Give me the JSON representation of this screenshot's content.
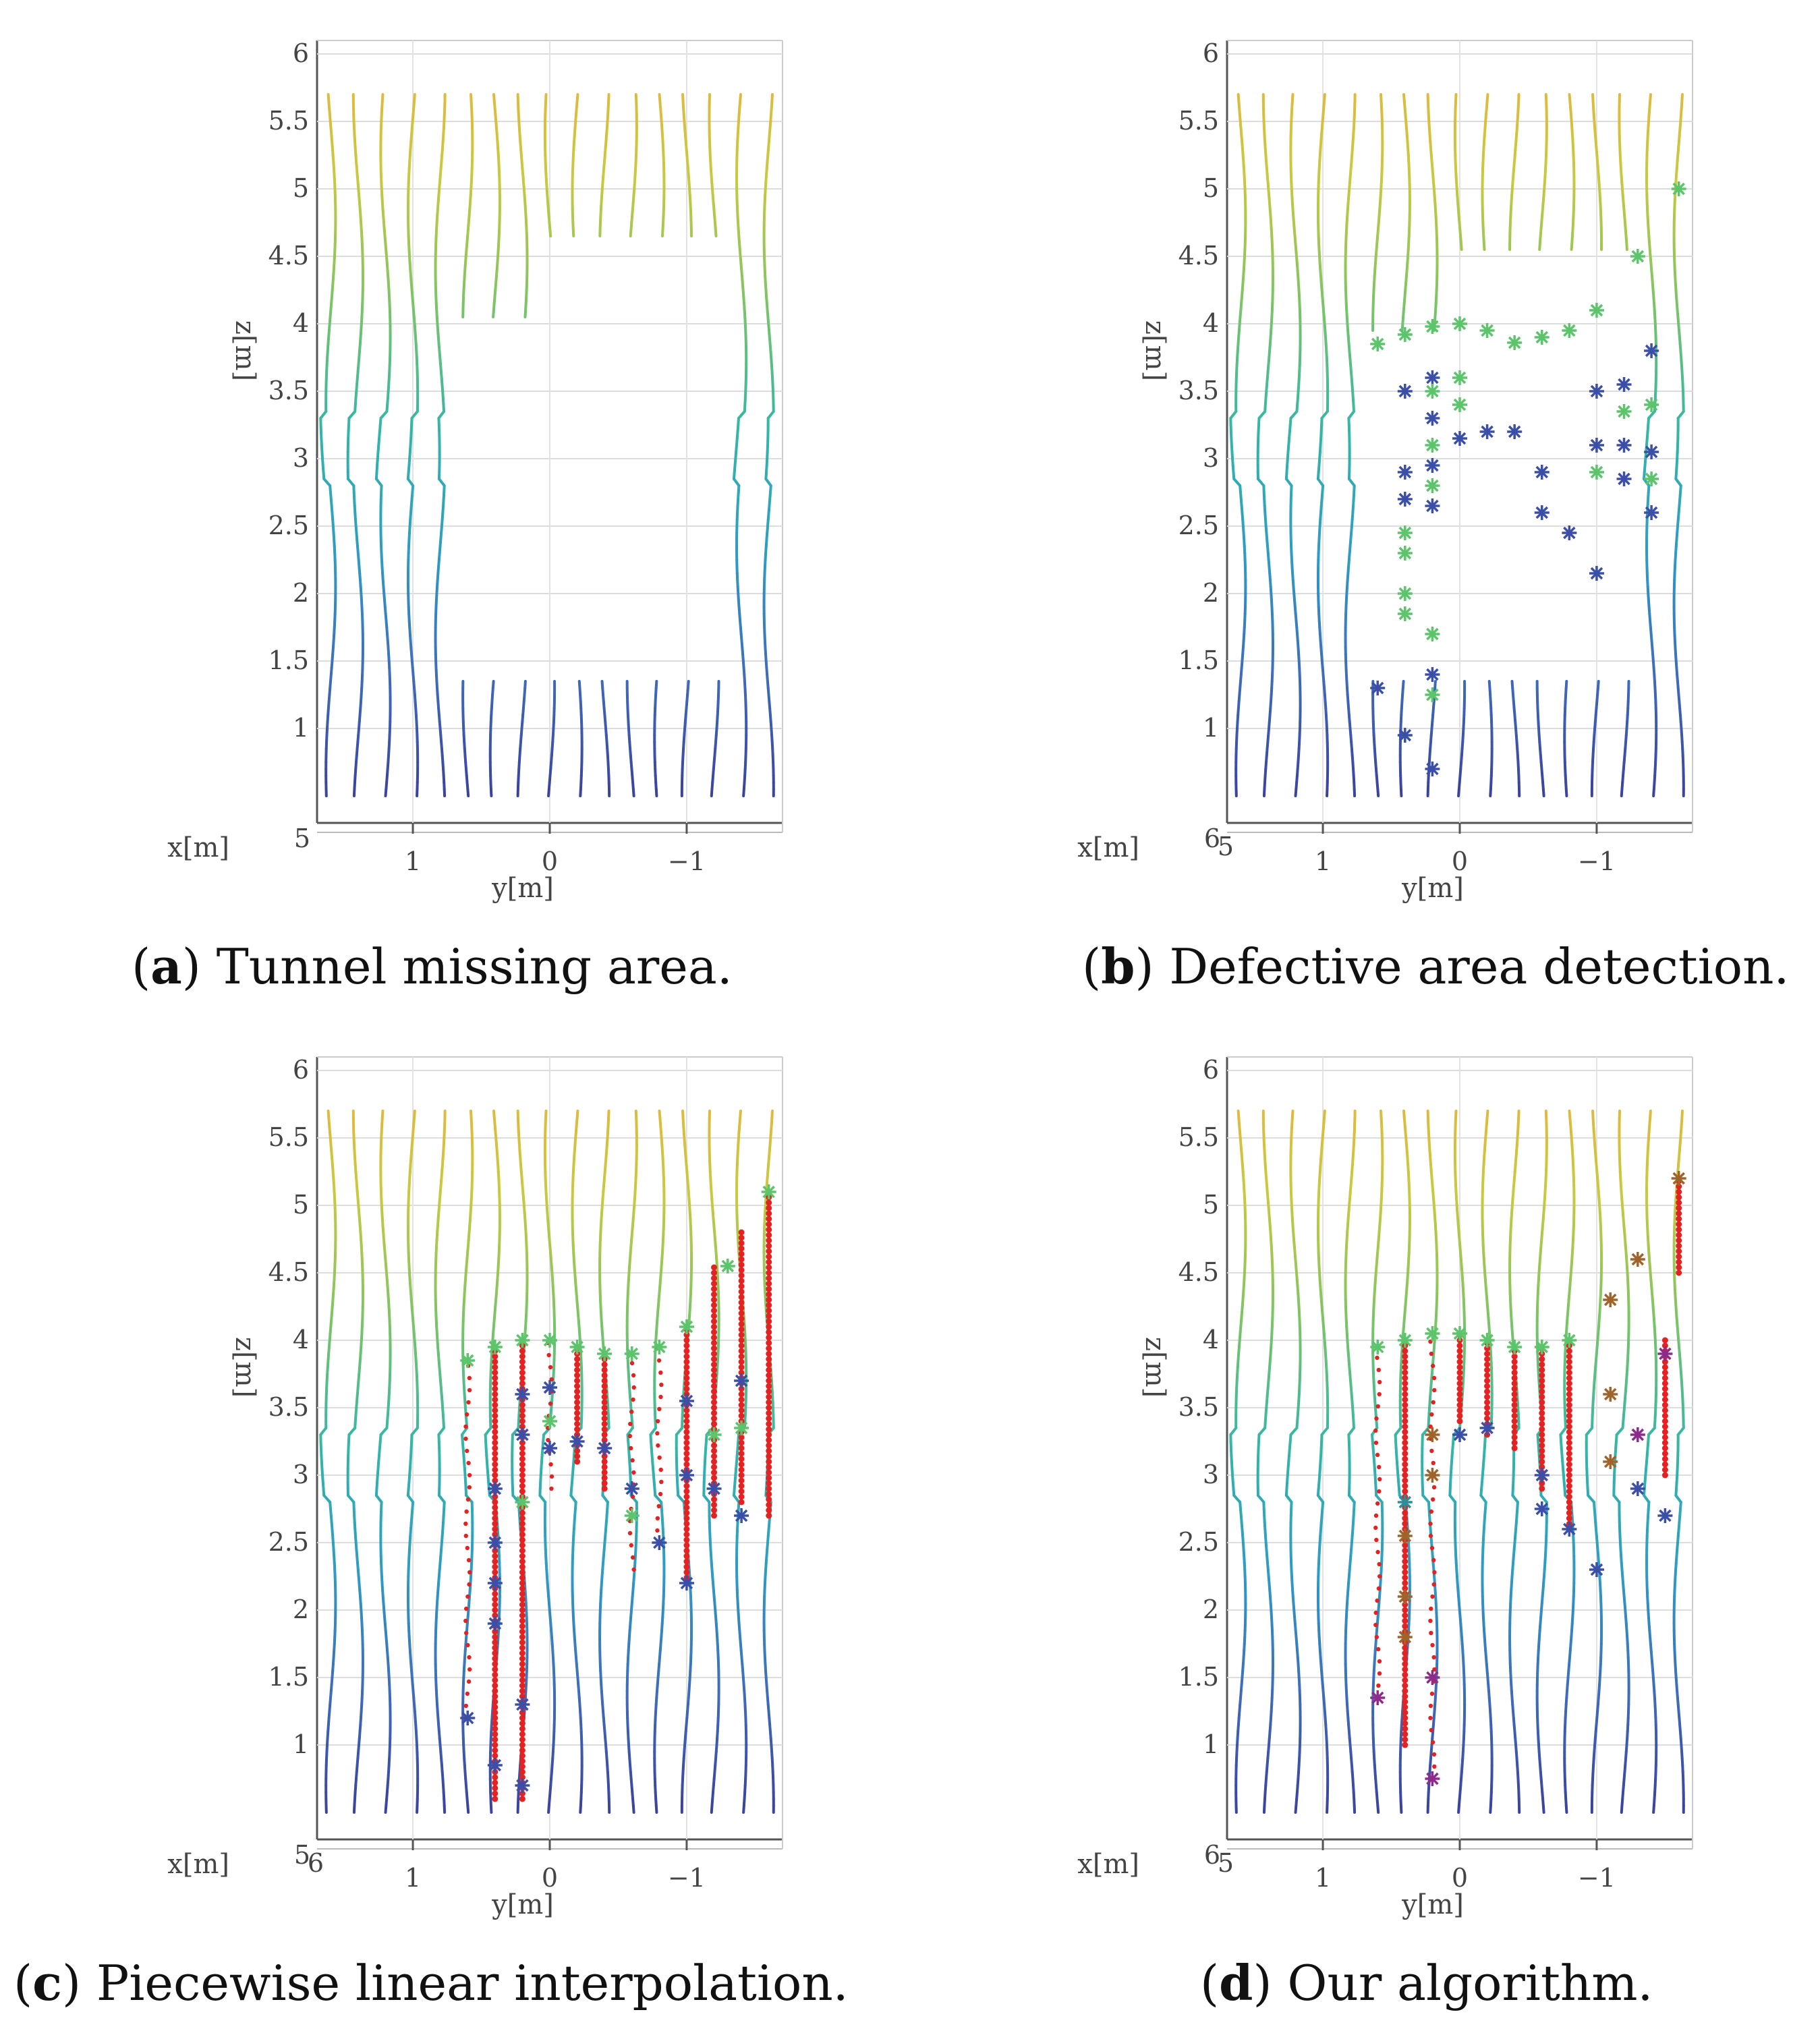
{
  "figure": {
    "panels": [
      {
        "letter": "a",
        "caption": " Tunnel missing area."
      },
      {
        "letter": "b",
        "caption": " Defective area detection."
      },
      {
        "letter": "c",
        "caption": " Piecewise linear interpolation."
      },
      {
        "letter": "d",
        "caption": " Our algorithm."
      }
    ]
  },
  "colors": {
    "profile_gradient": [
      "#3a3f9a",
      "#3f6ab8",
      "#2f9bc4",
      "#33b6a8",
      "#7cc466",
      "#c8c93e",
      "#e9b43c"
    ],
    "blue_star": "#3b4fa8",
    "green_star": "#5cc46a",
    "interp_red": "#e32222",
    "teal_star": "#2a8f9a",
    "brown_star": "#a0642a",
    "purple_star": "#8e2a8a"
  },
  "chart_data": [
    {
      "id": "a",
      "type": "scatter",
      "title": "Tunnel missing area.",
      "xlabel": "y[m]",
      "ylabel": "z[m]",
      "xaxis_extra_label": "x[m]",
      "x_ticks": [
        "1",
        "0",
        "−1"
      ],
      "x_tick_values": [
        1,
        0,
        -1
      ],
      "x_corner_ticks": [
        "5"
      ],
      "z_ticks": [
        "1",
        "1.5",
        "2",
        "2.5",
        "3",
        "3.5",
        "4",
        "4.5",
        "5",
        "5.5",
        "6"
      ],
      "z_tick_values": [
        1,
        1.5,
        2,
        2.5,
        3,
        3.5,
        4,
        4.5,
        5,
        5.5,
        6
      ],
      "ylim": [
        0.4,
        6
      ],
      "xlim": [
        1.7,
        -1.7
      ],
      "profiles_y": [
        1.6,
        1.4,
        1.2,
        1.0,
        0.8,
        0.6,
        0.4,
        0.2,
        0.0,
        -0.2,
        -0.4,
        -0.6,
        -0.8,
        -1.0,
        -1.2,
        -1.4,
        -1.6
      ],
      "profile_top": 5.7,
      "profile_bottom": 0.5,
      "missing_regions": [
        {
          "y_from": 0.6,
          "y_to": -1.3,
          "z_from": 1.4,
          "z_to": 4.0
        },
        {
          "y_from": 0.0,
          "y_to": -1.3,
          "z_from": 4.0,
          "z_to": 4.6
        }
      ],
      "stars": [],
      "interpolated": []
    },
    {
      "id": "b",
      "type": "scatter",
      "title": "Defective area detection.",
      "xlabel": "y[m]",
      "ylabel": "z[m]",
      "xaxis_extra_label": "x[m]",
      "x_ticks": [
        "1",
        "0",
        "−1"
      ],
      "x_tick_values": [
        1,
        0,
        -1
      ],
      "x_corner_ticks": [
        "6",
        "5"
      ],
      "z_ticks": [
        "1",
        "1.5",
        "2",
        "2.5",
        "3",
        "3.5",
        "4",
        "4.5",
        "5",
        "5.5",
        "6"
      ],
      "z_tick_values": [
        1,
        1.5,
        2,
        2.5,
        3,
        3.5,
        4,
        4.5,
        5,
        5.5,
        6
      ],
      "ylim": [
        0.4,
        6
      ],
      "xlim": [
        1.7,
        -1.7
      ],
      "profiles_y": [
        1.6,
        1.4,
        1.2,
        1.0,
        0.8,
        0.6,
        0.4,
        0.2,
        0.0,
        -0.2,
        -0.4,
        -0.6,
        -0.8,
        -1.0,
        -1.2,
        -1.4,
        -1.6
      ],
      "profile_top": 5.7,
      "profile_bottom": 0.5,
      "missing_regions": [
        {
          "y_from": 0.6,
          "y_to": -1.3,
          "z_from": 1.4,
          "z_to": 3.9
        },
        {
          "y_from": 0.0,
          "y_to": -1.3,
          "z_from": 3.9,
          "z_to": 4.5
        }
      ],
      "stars": [
        {
          "y": 0.6,
          "z": 3.85,
          "c": "g"
        },
        {
          "y": 0.4,
          "z": 3.92,
          "c": "g"
        },
        {
          "y": 0.2,
          "z": 3.98,
          "c": "g"
        },
        {
          "y": 0.0,
          "z": 4.0,
          "c": "g"
        },
        {
          "y": -0.2,
          "z": 3.95,
          "c": "g"
        },
        {
          "y": -0.4,
          "z": 3.86,
          "c": "g"
        },
        {
          "y": -0.6,
          "z": 3.9,
          "c": "g"
        },
        {
          "y": -0.8,
          "z": 3.95,
          "c": "g"
        },
        {
          "y": -1.0,
          "z": 4.1,
          "c": "g"
        },
        {
          "y": -1.3,
          "z": 4.5,
          "c": "g"
        },
        {
          "y": -1.6,
          "z": 5.0,
          "c": "g"
        },
        {
          "y": 0.4,
          "z": 3.5,
          "c": "b"
        },
        {
          "y": 0.4,
          "z": 2.9,
          "c": "b"
        },
        {
          "y": 0.4,
          "z": 2.7,
          "c": "b"
        },
        {
          "y": 0.4,
          "z": 2.45,
          "c": "g"
        },
        {
          "y": 0.4,
          "z": 2.3,
          "c": "g"
        },
        {
          "y": 0.4,
          "z": 2.0,
          "c": "g"
        },
        {
          "y": 0.4,
          "z": 1.85,
          "c": "g"
        },
        {
          "y": 0.4,
          "z": 0.95,
          "c": "b"
        },
        {
          "y": 0.2,
          "z": 3.6,
          "c": "b"
        },
        {
          "y": 0.2,
          "z": 3.5,
          "c": "g"
        },
        {
          "y": 0.2,
          "z": 3.3,
          "c": "b"
        },
        {
          "y": 0.2,
          "z": 3.1,
          "c": "g"
        },
        {
          "y": 0.2,
          "z": 2.95,
          "c": "b"
        },
        {
          "y": 0.2,
          "z": 2.8,
          "c": "g"
        },
        {
          "y": 0.2,
          "z": 2.65,
          "c": "b"
        },
        {
          "y": 0.2,
          "z": 1.7,
          "c": "g"
        },
        {
          "y": 0.2,
          "z": 1.4,
          "c": "b"
        },
        {
          "y": 0.2,
          "z": 1.25,
          "c": "g"
        },
        {
          "y": 0.2,
          "z": 0.7,
          "c": "b"
        },
        {
          "y": 0.0,
          "z": 3.6,
          "c": "g"
        },
        {
          "y": 0.0,
          "z": 3.4,
          "c": "g"
        },
        {
          "y": 0.0,
          "z": 3.15,
          "c": "b"
        },
        {
          "y": -0.2,
          "z": 3.2,
          "c": "b"
        },
        {
          "y": -0.4,
          "z": 3.2,
          "c": "b"
        },
        {
          "y": -0.6,
          "z": 2.9,
          "c": "b"
        },
        {
          "y": -0.6,
          "z": 2.6,
          "c": "b"
        },
        {
          "y": -0.8,
          "z": 2.45,
          "c": "b"
        },
        {
          "y": 0.6,
          "z": 1.3,
          "c": "b"
        },
        {
          "y": -1.0,
          "z": 3.5,
          "c": "b"
        },
        {
          "y": -1.0,
          "z": 3.1,
          "c": "b"
        },
        {
          "y": -1.0,
          "z": 2.9,
          "c": "g"
        },
        {
          "y": -1.0,
          "z": 2.15,
          "c": "b"
        },
        {
          "y": -1.2,
          "z": 3.55,
          "c": "b"
        },
        {
          "y": -1.2,
          "z": 3.35,
          "c": "g"
        },
        {
          "y": -1.2,
          "z": 3.1,
          "c": "b"
        },
        {
          "y": -1.2,
          "z": 2.85,
          "c": "b"
        },
        {
          "y": -1.4,
          "z": 3.8,
          "c": "b"
        },
        {
          "y": -1.4,
          "z": 3.4,
          "c": "g"
        },
        {
          "y": -1.4,
          "z": 3.05,
          "c": "b"
        },
        {
          "y": -1.4,
          "z": 2.85,
          "c": "g"
        },
        {
          "y": -1.4,
          "z": 2.6,
          "c": "b"
        }
      ],
      "interpolated": []
    },
    {
      "id": "c",
      "type": "scatter",
      "title": "Piecewise linear interpolation.",
      "xlabel": "y[m]",
      "ylabel": "z[m]",
      "xaxis_extra_label": "x[m]",
      "x_ticks": [
        "1",
        "0",
        "−1"
      ],
      "x_tick_values": [
        1,
        0,
        -1
      ],
      "x_corner_ticks": [
        "5",
        "6"
      ],
      "z_ticks": [
        "1",
        "1.5",
        "2",
        "2.5",
        "3",
        "3.5",
        "4",
        "4.5",
        "5",
        "5.5",
        "6"
      ],
      "z_tick_values": [
        1,
        1.5,
        2,
        2.5,
        3,
        3.5,
        4,
        4.5,
        5,
        5.5,
        6
      ],
      "ylim": [
        0.4,
        6
      ],
      "xlim": [
        1.7,
        -1.7
      ],
      "profiles_y": [
        1.6,
        1.4,
        1.2,
        1.0,
        0.8,
        0.6,
        0.4,
        0.2,
        0.0,
        -0.2,
        -0.4,
        -0.6,
        -0.8,
        -1.0,
        -1.2,
        -1.4,
        -1.6
      ],
      "profile_top": 5.7,
      "profile_bottom": 0.5,
      "missing_regions": [],
      "stars": [
        {
          "y": 0.6,
          "z": 3.85,
          "c": "g"
        },
        {
          "y": 0.4,
          "z": 3.95,
          "c": "g"
        },
        {
          "y": 0.2,
          "z": 4.0,
          "c": "g"
        },
        {
          "y": 0.0,
          "z": 4.0,
          "c": "g"
        },
        {
          "y": -0.2,
          "z": 3.95,
          "c": "g"
        },
        {
          "y": -0.4,
          "z": 3.9,
          "c": "g"
        },
        {
          "y": -0.6,
          "z": 3.9,
          "c": "g"
        },
        {
          "y": -0.8,
          "z": 3.95,
          "c": "g"
        },
        {
          "y": -1.0,
          "z": 4.1,
          "c": "g"
        },
        {
          "y": -1.3,
          "z": 4.55,
          "c": "g"
        },
        {
          "y": -1.6,
          "z": 5.1,
          "c": "g"
        },
        {
          "y": 0.4,
          "z": 2.9,
          "c": "b"
        },
        {
          "y": 0.4,
          "z": 2.5,
          "c": "b"
        },
        {
          "y": 0.4,
          "z": 2.2,
          "c": "b"
        },
        {
          "y": 0.4,
          "z": 1.9,
          "c": "b"
        },
        {
          "y": 0.4,
          "z": 0.85,
          "c": "b"
        },
        {
          "y": 0.2,
          "z": 3.6,
          "c": "b"
        },
        {
          "y": 0.2,
          "z": 3.3,
          "c": "b"
        },
        {
          "y": 0.2,
          "z": 2.8,
          "c": "g"
        },
        {
          "y": 0.2,
          "z": 1.3,
          "c": "b"
        },
        {
          "y": 0.2,
          "z": 0.7,
          "c": "b"
        },
        {
          "y": 0.0,
          "z": 3.65,
          "c": "b"
        },
        {
          "y": 0.0,
          "z": 3.4,
          "c": "g"
        },
        {
          "y": 0.0,
          "z": 3.2,
          "c": "b"
        },
        {
          "y": -0.2,
          "z": 3.25,
          "c": "b"
        },
        {
          "y": -0.4,
          "z": 3.2,
          "c": "b"
        },
        {
          "y": -0.6,
          "z": 2.9,
          "c": "b"
        },
        {
          "y": -0.6,
          "z": 2.7,
          "c": "g"
        },
        {
          "y": -0.8,
          "z": 2.5,
          "c": "b"
        },
        {
          "y": 0.6,
          "z": 1.2,
          "c": "b"
        },
        {
          "y": -1.0,
          "z": 3.55,
          "c": "b"
        },
        {
          "y": -1.0,
          "z": 3.0,
          "c": "b"
        },
        {
          "y": -1.0,
          "z": 2.2,
          "c": "b"
        },
        {
          "y": -1.2,
          "z": 3.3,
          "c": "g"
        },
        {
          "y": -1.2,
          "z": 2.9,
          "c": "b"
        },
        {
          "y": -1.4,
          "z": 3.7,
          "c": "b"
        },
        {
          "y": -1.4,
          "z": 3.35,
          "c": "g"
        },
        {
          "y": -1.4,
          "z": 2.7,
          "c": "b"
        }
      ],
      "interpolated": [
        {
          "y": 0.6,
          "z_from": 1.2,
          "z_to": 3.85,
          "dense": false
        },
        {
          "y": 0.4,
          "z_from": 0.6,
          "z_to": 3.95,
          "dense": true
        },
        {
          "y": 0.2,
          "z_from": 0.6,
          "z_to": 4.0,
          "dense": true
        },
        {
          "y": 0.0,
          "z_from": 2.9,
          "z_to": 4.0,
          "dense": false
        },
        {
          "y": -0.2,
          "z_from": 3.1,
          "z_to": 3.95,
          "dense": true
        },
        {
          "y": -0.4,
          "z_from": 2.9,
          "z_to": 3.9,
          "dense": true
        },
        {
          "y": -0.6,
          "z_from": 2.3,
          "z_to": 3.9,
          "dense": false
        },
        {
          "y": -0.8,
          "z_from": 2.5,
          "z_to": 4.0,
          "dense": false
        },
        {
          "y": -1.0,
          "z_from": 2.2,
          "z_to": 4.1,
          "dense": true
        },
        {
          "y": -1.2,
          "z_from": 2.7,
          "z_to": 4.55,
          "dense": true
        },
        {
          "y": -1.4,
          "z_from": 2.8,
          "z_to": 4.8,
          "dense": true
        },
        {
          "y": -1.6,
          "z_from": 2.7,
          "z_to": 5.1,
          "dense": true
        }
      ]
    },
    {
      "id": "d",
      "type": "scatter",
      "title": "Our algorithm.",
      "xlabel": "y[m]",
      "ylabel": "z[m]",
      "xaxis_extra_label": "x[m]",
      "x_ticks": [
        "1",
        "0",
        "−1"
      ],
      "x_tick_values": [
        1,
        0,
        -1
      ],
      "x_corner_ticks": [
        "6",
        "5"
      ],
      "z_ticks": [
        "1",
        "1.5",
        "2",
        "2.5",
        "3",
        "3.5",
        "4",
        "4.5",
        "5",
        "5.5",
        "6"
      ],
      "z_tick_values": [
        1,
        1.5,
        2,
        2.5,
        3,
        3.5,
        4,
        4.5,
        5,
        5.5,
        6
      ],
      "ylim": [
        0.4,
        6
      ],
      "xlim": [
        1.7,
        -1.7
      ],
      "profiles_y": [
        1.6,
        1.4,
        1.2,
        1.0,
        0.8,
        0.6,
        0.4,
        0.2,
        0.0,
        -0.2,
        -0.4,
        -0.6,
        -0.8,
        -1.0,
        -1.2,
        -1.4,
        -1.6
      ],
      "profile_top": 5.7,
      "profile_bottom": 0.5,
      "missing_regions": [],
      "stars": [
        {
          "y": 0.6,
          "z": 3.95,
          "c": "g"
        },
        {
          "y": 0.4,
          "z": 4.0,
          "c": "g"
        },
        {
          "y": 0.2,
          "z": 4.05,
          "c": "g"
        },
        {
          "y": 0.0,
          "z": 4.05,
          "c": "g"
        },
        {
          "y": -0.2,
          "z": 4.0,
          "c": "g"
        },
        {
          "y": -0.4,
          "z": 3.95,
          "c": "g"
        },
        {
          "y": -0.6,
          "z": 3.95,
          "c": "g"
        },
        {
          "y": -0.8,
          "z": 4.0,
          "c": "g"
        },
        {
          "y": 0.4,
          "z": 2.8,
          "c": "t"
        },
        {
          "y": 0.4,
          "z": 2.55,
          "c": "br"
        },
        {
          "y": 0.4,
          "z": 2.1,
          "c": "br"
        },
        {
          "y": 0.4,
          "z": 1.8,
          "c": "br"
        },
        {
          "y": 0.2,
          "z": 3.3,
          "c": "br"
        },
        {
          "y": 0.2,
          "z": 3.0,
          "c": "br"
        },
        {
          "y": 0.2,
          "z": 1.5,
          "c": "p"
        },
        {
          "y": 0.2,
          "z": 0.75,
          "c": "p"
        },
        {
          "y": 0.0,
          "z": 3.3,
          "c": "b"
        },
        {
          "y": -0.2,
          "z": 3.35,
          "c": "b"
        },
        {
          "y": -0.6,
          "z": 3.0,
          "c": "b"
        },
        {
          "y": -0.6,
          "z": 2.75,
          "c": "b"
        },
        {
          "y": -0.8,
          "z": 2.6,
          "c": "b"
        },
        {
          "y": 0.6,
          "z": 1.35,
          "c": "p"
        },
        {
          "y": -1.0,
          "z": 2.3,
          "c": "b"
        },
        {
          "y": -1.1,
          "z": 3.6,
          "c": "br"
        },
        {
          "y": -1.1,
          "z": 3.1,
          "c": "br"
        },
        {
          "y": -1.3,
          "z": 3.3,
          "c": "p"
        },
        {
          "y": -1.3,
          "z": 2.9,
          "c": "b"
        },
        {
          "y": -1.5,
          "z": 3.9,
          "c": "p"
        },
        {
          "y": -1.5,
          "z": 2.7,
          "c": "b"
        },
        {
          "y": -1.6,
          "z": 5.2,
          "c": "br"
        },
        {
          "y": -1.3,
          "z": 4.6,
          "c": "br"
        },
        {
          "y": -1.1,
          "z": 4.3,
          "c": "br"
        }
      ],
      "interpolated": [
        {
          "y": 0.6,
          "z_from": 1.35,
          "z_to": 3.95,
          "dense": false
        },
        {
          "y": 0.4,
          "z_from": 1.0,
          "z_to": 4.0,
          "dense": true
        },
        {
          "y": 0.2,
          "z_from": 0.75,
          "z_to": 4.05,
          "dense": false
        },
        {
          "y": 0.0,
          "z_from": 3.4,
          "z_to": 4.05,
          "dense": true
        },
        {
          "y": -0.2,
          "z_from": 3.3,
          "z_to": 4.0,
          "dense": true
        },
        {
          "y": -0.4,
          "z_from": 3.2,
          "z_to": 3.95,
          "dense": true
        },
        {
          "y": -0.6,
          "z_from": 2.9,
          "z_to": 3.95,
          "dense": true
        },
        {
          "y": -0.8,
          "z_from": 2.6,
          "z_to": 4.0,
          "dense": true
        },
        {
          "y": -1.5,
          "z_from": 3.0,
          "z_to": 4.0,
          "dense": true
        },
        {
          "y": -1.6,
          "z_from": 4.5,
          "z_to": 5.2,
          "dense": true
        }
      ]
    }
  ]
}
